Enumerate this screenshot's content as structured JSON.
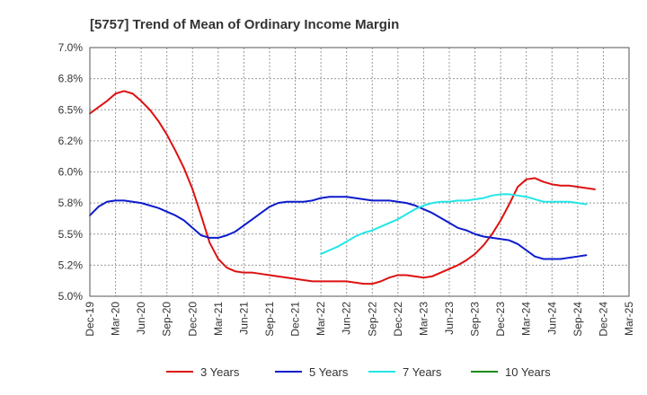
{
  "chart_data": {
    "type": "line",
    "title": "[5757]  Trend of Mean of Ordinary Income Margin",
    "ylim": [
      5.0,
      7.0
    ],
    "y_ticks": [
      "7.0%",
      "6.8%",
      "6.5%",
      "6.2%",
      "6.0%",
      "5.8%",
      "5.5%",
      "5.2%",
      "5.0%"
    ],
    "y_tick_values": [
      7.0,
      6.75,
      6.5,
      6.25,
      6.0,
      5.75,
      5.5,
      5.25,
      5.0
    ],
    "x_ticks": [
      "Dec-19",
      "Mar-20",
      "Jun-20",
      "Sep-20",
      "Dec-20",
      "Mar-21",
      "Jun-21",
      "Sep-21",
      "Dec-21",
      "Mar-22",
      "Jun-22",
      "Sep-22",
      "Dec-22",
      "Mar-23",
      "Jun-23",
      "Sep-23",
      "Dec-23",
      "Mar-24",
      "Jun-24",
      "Sep-24",
      "Dec-24",
      "Mar-25"
    ],
    "grid": true,
    "legend": "bottom",
    "series": [
      {
        "name": "3 Years",
        "color": "#dd1111",
        "values": [
          [
            "Dec-19",
            6.47
          ],
          [
            "Jan-20",
            6.52
          ],
          [
            "Feb-20",
            6.57
          ],
          [
            "Mar-20",
            6.63
          ],
          [
            "Apr-20",
            6.65
          ],
          [
            "May-20",
            6.63
          ],
          [
            "Jun-20",
            6.57
          ],
          [
            "Jul-20",
            6.5
          ],
          [
            "Aug-20",
            6.41
          ],
          [
            "Sep-20",
            6.3
          ],
          [
            "Oct-20",
            6.17
          ],
          [
            "Nov-20",
            6.03
          ],
          [
            "Dec-20",
            5.86
          ],
          [
            "Jan-21",
            5.65
          ],
          [
            "Feb-21",
            5.43
          ],
          [
            "Mar-21",
            5.3
          ],
          [
            "Apr-21",
            5.23
          ],
          [
            "May-21",
            5.2
          ],
          [
            "Jun-21",
            5.19
          ],
          [
            "Jul-21",
            5.19
          ],
          [
            "Aug-21",
            5.18
          ],
          [
            "Sep-21",
            5.17
          ],
          [
            "Oct-21",
            5.16
          ],
          [
            "Nov-21",
            5.15
          ],
          [
            "Dec-21",
            5.14
          ],
          [
            "Jan-22",
            5.13
          ],
          [
            "Feb-22",
            5.12
          ],
          [
            "Mar-22",
            5.12
          ],
          [
            "Apr-22",
            5.12
          ],
          [
            "May-22",
            5.12
          ],
          [
            "Jun-22",
            5.12
          ],
          [
            "Jul-22",
            5.11
          ],
          [
            "Aug-22",
            5.1
          ],
          [
            "Sep-22",
            5.1
          ],
          [
            "Oct-22",
            5.12
          ],
          [
            "Nov-22",
            5.15
          ],
          [
            "Dec-22",
            5.17
          ],
          [
            "Jan-23",
            5.17
          ],
          [
            "Feb-23",
            5.16
          ],
          [
            "Mar-23",
            5.15
          ],
          [
            "Apr-23",
            5.16
          ],
          [
            "May-23",
            5.19
          ],
          [
            "Jun-23",
            5.22
          ],
          [
            "Jul-23",
            5.25
          ],
          [
            "Aug-23",
            5.29
          ],
          [
            "Sep-23",
            5.34
          ],
          [
            "Oct-23",
            5.41
          ],
          [
            "Nov-23",
            5.5
          ],
          [
            "Dec-23",
            5.61
          ],
          [
            "Jan-24",
            5.74
          ],
          [
            "Feb-24",
            5.88
          ],
          [
            "Mar-24",
            5.94
          ],
          [
            "Apr-24",
            5.95
          ],
          [
            "May-24",
            5.92
          ],
          [
            "Jun-24",
            5.9
          ],
          [
            "Jul-24",
            5.89
          ],
          [
            "Aug-24",
            5.89
          ],
          [
            "Sep-24",
            5.88
          ],
          [
            "Oct-24",
            5.87
          ],
          [
            "Nov-24",
            5.86
          ]
        ]
      },
      {
        "name": "5 Years",
        "color": "#0d1bcc",
        "values": [
          [
            "Dec-19",
            5.65
          ],
          [
            "Jan-20",
            5.72
          ],
          [
            "Feb-20",
            5.76
          ],
          [
            "Mar-20",
            5.77
          ],
          [
            "Apr-20",
            5.77
          ],
          [
            "May-20",
            5.76
          ],
          [
            "Jun-20",
            5.75
          ],
          [
            "Jul-20",
            5.73
          ],
          [
            "Aug-20",
            5.71
          ],
          [
            "Sep-20",
            5.68
          ],
          [
            "Oct-20",
            5.65
          ],
          [
            "Nov-20",
            5.61
          ],
          [
            "Dec-20",
            5.55
          ],
          [
            "Jan-21",
            5.49
          ],
          [
            "Feb-21",
            5.47
          ],
          [
            "Mar-21",
            5.47
          ],
          [
            "Apr-21",
            5.49
          ],
          [
            "May-21",
            5.52
          ],
          [
            "Jun-21",
            5.57
          ],
          [
            "Jul-21",
            5.62
          ],
          [
            "Aug-21",
            5.67
          ],
          [
            "Sep-21",
            5.72
          ],
          [
            "Oct-21",
            5.75
          ],
          [
            "Nov-21",
            5.76
          ],
          [
            "Dec-21",
            5.76
          ],
          [
            "Jan-22",
            5.76
          ],
          [
            "Feb-22",
            5.77
          ],
          [
            "Mar-22",
            5.79
          ],
          [
            "Apr-22",
            5.8
          ],
          [
            "May-22",
            5.8
          ],
          [
            "Jun-22",
            5.8
          ],
          [
            "Jul-22",
            5.79
          ],
          [
            "Aug-22",
            5.78
          ],
          [
            "Sep-22",
            5.77
          ],
          [
            "Oct-22",
            5.77
          ],
          [
            "Nov-22",
            5.77
          ],
          [
            "Dec-22",
            5.76
          ],
          [
            "Jan-23",
            5.75
          ],
          [
            "Feb-23",
            5.73
          ],
          [
            "Mar-23",
            5.7
          ],
          [
            "Apr-23",
            5.67
          ],
          [
            "May-23",
            5.63
          ],
          [
            "Jun-23",
            5.59
          ],
          [
            "Jul-23",
            5.55
          ],
          [
            "Aug-23",
            5.53
          ],
          [
            "Sep-23",
            5.5
          ],
          [
            "Oct-23",
            5.48
          ],
          [
            "Nov-23",
            5.47
          ],
          [
            "Dec-23",
            5.46
          ],
          [
            "Jan-24",
            5.45
          ],
          [
            "Feb-24",
            5.42
          ],
          [
            "Mar-24",
            5.37
          ],
          [
            "Apr-24",
            5.32
          ],
          [
            "May-24",
            5.3
          ],
          [
            "Jun-24",
            5.3
          ],
          [
            "Jul-24",
            5.3
          ],
          [
            "Aug-24",
            5.31
          ],
          [
            "Sep-24",
            5.32
          ],
          [
            "Oct-24",
            5.33
          ]
        ]
      },
      {
        "name": "7 Years",
        "color": "#22e6e6",
        "values": [
          [
            "Mar-22",
            5.34
          ],
          [
            "Apr-22",
            5.37
          ],
          [
            "May-22",
            5.4
          ],
          [
            "Jun-22",
            5.44
          ],
          [
            "Jul-22",
            5.48
          ],
          [
            "Aug-22",
            5.51
          ],
          [
            "Sep-22",
            5.53
          ],
          [
            "Oct-22",
            5.56
          ],
          [
            "Nov-22",
            5.59
          ],
          [
            "Dec-22",
            5.62
          ],
          [
            "Jan-23",
            5.66
          ],
          [
            "Feb-23",
            5.7
          ],
          [
            "Mar-23",
            5.73
          ],
          [
            "Apr-23",
            5.75
          ],
          [
            "May-23",
            5.76
          ],
          [
            "Jun-23",
            5.76
          ],
          [
            "Jul-23",
            5.77
          ],
          [
            "Aug-23",
            5.77
          ],
          [
            "Sep-23",
            5.78
          ],
          [
            "Oct-23",
            5.79
          ],
          [
            "Nov-23",
            5.81
          ],
          [
            "Dec-23",
            5.82
          ],
          [
            "Jan-24",
            5.82
          ],
          [
            "Feb-24",
            5.81
          ],
          [
            "Mar-24",
            5.8
          ],
          [
            "Apr-24",
            5.78
          ],
          [
            "May-24",
            5.76
          ],
          [
            "Jun-24",
            5.76
          ],
          [
            "Jul-24",
            5.76
          ],
          [
            "Aug-24",
            5.76
          ],
          [
            "Sep-24",
            5.75
          ],
          [
            "Oct-24",
            5.74
          ]
        ]
      },
      {
        "name": "10 Years",
        "color": "#1a8a1a",
        "values": []
      }
    ]
  }
}
